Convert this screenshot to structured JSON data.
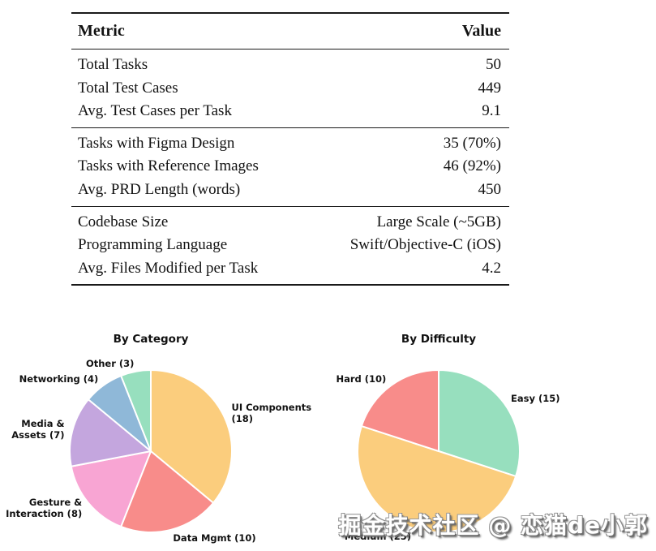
{
  "table": {
    "headers": [
      "Metric",
      "Value"
    ],
    "groups": [
      {
        "rows": [
          {
            "metric": "Total Tasks",
            "value": "50"
          },
          {
            "metric": "Total Test Cases",
            "value": "449"
          },
          {
            "metric": "Avg. Test Cases per Task",
            "value": "9.1"
          }
        ]
      },
      {
        "rows": [
          {
            "metric": "Tasks with Figma Design",
            "value": "35 (70%)"
          },
          {
            "metric": "Tasks with Reference Images",
            "value": "46 (92%)"
          },
          {
            "metric": "Avg. PRD Length (words)",
            "value": "450"
          }
        ]
      },
      {
        "rows": [
          {
            "metric": "Codebase Size",
            "value": "Large Scale (~5GB)"
          },
          {
            "metric": "Programming Language",
            "value": "Swift/Objective-C (iOS)"
          },
          {
            "metric": "Avg. Files Modified per Task",
            "value": "4.2"
          }
        ]
      }
    ]
  },
  "chart_data": [
    {
      "type": "pie",
      "title": "By Category",
      "categories": [
        "UI Components",
        "Data Mgmt",
        "Gesture & Interaction",
        "Media & Assets",
        "Networking",
        "Other"
      ],
      "values": [
        18,
        10,
        8,
        7,
        4,
        3
      ],
      "total": 50,
      "labels": [
        "UI Components (18)",
        "Data Mgmt (10)",
        "Gesture &\nInteraction (8)",
        "Media &\nAssets (7)",
        "Networking (4)",
        "Other (3)"
      ],
      "colors": [
        "#FBCD7D",
        "#F88C8A",
        "#F8A5D3",
        "#C4A6DE",
        "#8FB8D8",
        "#97DFBE"
      ],
      "start_angle_deg_from_north": 0,
      "direction": "clockwise",
      "label_distance": 1.1,
      "legend": "none",
      "wedge_edge_color": "#ffffff"
    },
    {
      "type": "pie",
      "title": "By Difficulty",
      "categories": [
        "Easy",
        "Medium",
        "Hard"
      ],
      "values": [
        15,
        25,
        10
      ],
      "total": 50,
      "labels": [
        "Easy (15)",
        "Medium (25)",
        "Hard (10)"
      ],
      "colors": [
        "#97DFBE",
        "#FBCD7D",
        "#F88C8A"
      ],
      "start_angle_deg_from_north": 0,
      "direction": "clockwise",
      "label_distance": 1.1,
      "legend": "none",
      "wedge_edge_color": "#ffffff"
    }
  ],
  "watermark": {
    "text": "掘金技术社区 @ 恋猫de小郭",
    "text_color": "#ffffff",
    "shadow_color": "#6e6e6e"
  }
}
